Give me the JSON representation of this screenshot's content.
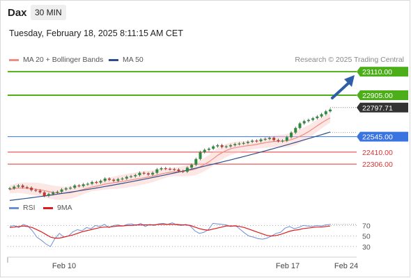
{
  "header": {
    "instrument": "Dax",
    "timeframe": "30 MIN",
    "datetime": "Tuesday, February 18, 2025 8:11:15 AM CET"
  },
  "legend": {
    "ma20": {
      "label": "MA 20 + Bollinger Bands",
      "color": "#f28b82"
    },
    "ma50": {
      "label": "MA 50",
      "color": "#2d4e8a"
    },
    "rsi": {
      "label": "RSI",
      "color": "#6b8fd6"
    },
    "rsi9": {
      "label": "9MA",
      "color": "#e01b1b"
    }
  },
  "credit": "Research © 2025 Trading Central",
  "chart_data": {
    "type": "candlestick",
    "x_axis": {
      "tick_labels": [
        "Feb 10",
        "Feb 17",
        "Feb 24"
      ]
    },
    "y_range": [
      21980,
      23250
    ],
    "levels": [
      {
        "label": "23110.00",
        "value": 23110,
        "kind": "resistance",
        "color": "#4caf1a"
      },
      {
        "label": "22905.00",
        "value": 22905,
        "kind": "resistance",
        "color": "#4caf1a"
      },
      {
        "label": "22797.71",
        "value": 22797.71,
        "kind": "last",
        "color": "#333333"
      },
      {
        "label": "22545.00",
        "value": 22545,
        "kind": "pivot",
        "color": "#3a74e0"
      },
      {
        "label": "22410.00",
        "value": 22410,
        "kind": "support",
        "color": "#e03030"
      },
      {
        "label": "22306.00",
        "value": 22306,
        "kind": "support",
        "color": "#e03030"
      }
    ],
    "close_series": [
      22095,
      22110,
      22120,
      22105,
      22100,
      22080,
      22075,
      22060,
      22030,
      22045,
      22060,
      22065,
      22085,
      22095,
      22100,
      22120,
      22115,
      22130,
      22135,
      22150,
      22145,
      22160,
      22180,
      22170,
      22160,
      22175,
      22180,
      22195,
      22200,
      22210,
      22230,
      22225,
      22215,
      22230,
      22260,
      22270,
      22265,
      22262,
      22258,
      22245,
      22240,
      22275,
      22300,
      22350,
      22410,
      22430,
      22440,
      22460,
      22470,
      22455,
      22460,
      22470,
      22480,
      22485,
      22490,
      22500,
      22510,
      22505,
      22520,
      22525,
      22535,
      22515,
      22505,
      22510,
      22540,
      22580,
      22620,
      22660,
      22680,
      22690,
      22705,
      22720,
      22740,
      22765,
      22780
    ],
    "ma20_end": 22690,
    "ma50_end": 22585,
    "rsi": {
      "levels": [
        70,
        50,
        30
      ],
      "rsi_series": [
        68,
        70,
        66,
        72,
        69,
        60,
        48,
        42,
        35,
        30,
        45,
        55,
        48,
        50,
        58,
        62,
        60,
        66,
        64,
        70,
        68,
        72,
        66,
        70,
        71,
        69,
        72,
        73,
        70,
        74,
        68,
        72,
        70,
        73,
        74,
        72,
        75,
        71,
        70,
        72,
        69,
        60,
        55,
        57,
        62,
        74,
        73,
        72,
        71,
        68,
        70,
        63,
        56,
        50,
        48,
        45,
        44,
        46,
        50,
        55,
        57,
        65,
        68,
        64,
        66,
        70,
        69,
        68,
        70,
        69,
        71,
        72
      ],
      "ma9_series": [
        66,
        67,
        68,
        69,
        68,
        66,
        62,
        58,
        53,
        48,
        46,
        46,
        48,
        50,
        52,
        55,
        58,
        60,
        62,
        64,
        66,
        67,
        67,
        68,
        69,
        69,
        70,
        70,
        71,
        71,
        71,
        71,
        71,
        72,
        72,
        72,
        72,
        72,
        71,
        71,
        70,
        67,
        64,
        62,
        61,
        63,
        65,
        67,
        69,
        69,
        69,
        68,
        66,
        63,
        60,
        57,
        54,
        51,
        50,
        51,
        53,
        56,
        59,
        61,
        62,
        64,
        65,
        66,
        67,
        67,
        68,
        69
      ]
    }
  }
}
